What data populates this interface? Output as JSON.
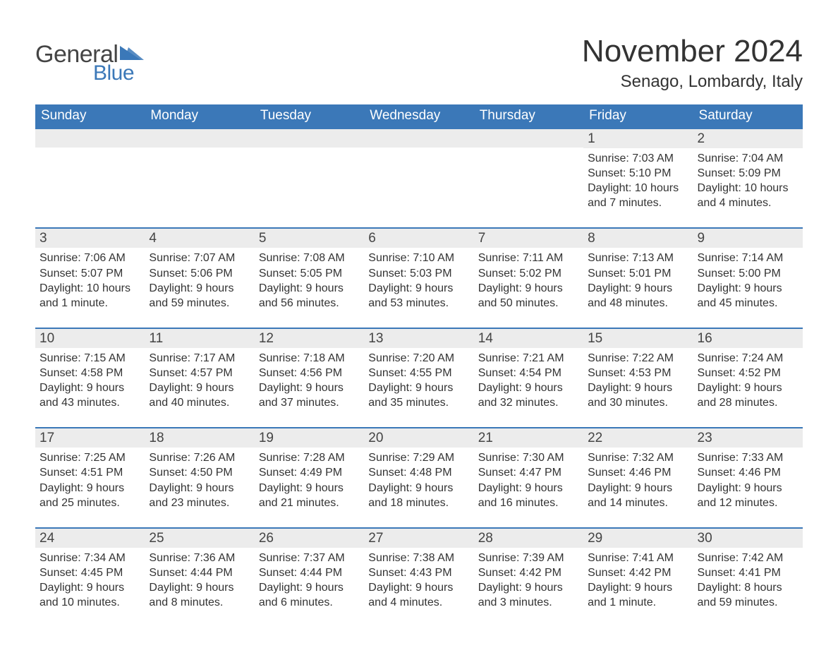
{
  "logo": {
    "text1": "General",
    "text2": "Blue"
  },
  "title": "November 2024",
  "subtitle": "Senago, Lombardy, Italy",
  "colors": {
    "header_bg": "#3b78b8",
    "header_text": "#ffffff",
    "cell_header_bg": "#ececec",
    "week_border": "#3b78b8",
    "text": "#333333",
    "logo_accent": "#3b78b8",
    "page_bg": "#ffffff"
  },
  "daysOfWeek": [
    "Sunday",
    "Monday",
    "Tuesday",
    "Wednesday",
    "Thursday",
    "Friday",
    "Saturday"
  ],
  "weeks": [
    [
      {
        "empty": true
      },
      {
        "empty": true
      },
      {
        "empty": true
      },
      {
        "empty": true
      },
      {
        "empty": true
      },
      {
        "day": "1",
        "sunrise": "Sunrise: 7:03 AM",
        "sunset": "Sunset: 5:10 PM",
        "daylight": "Daylight: 10 hours and 7 minutes."
      },
      {
        "day": "2",
        "sunrise": "Sunrise: 7:04 AM",
        "sunset": "Sunset: 5:09 PM",
        "daylight": "Daylight: 10 hours and 4 minutes."
      }
    ],
    [
      {
        "day": "3",
        "sunrise": "Sunrise: 7:06 AM",
        "sunset": "Sunset: 5:07 PM",
        "daylight": "Daylight: 10 hours and 1 minute."
      },
      {
        "day": "4",
        "sunrise": "Sunrise: 7:07 AM",
        "sunset": "Sunset: 5:06 PM",
        "daylight": "Daylight: 9 hours and 59 minutes."
      },
      {
        "day": "5",
        "sunrise": "Sunrise: 7:08 AM",
        "sunset": "Sunset: 5:05 PM",
        "daylight": "Daylight: 9 hours and 56 minutes."
      },
      {
        "day": "6",
        "sunrise": "Sunrise: 7:10 AM",
        "sunset": "Sunset: 5:03 PM",
        "daylight": "Daylight: 9 hours and 53 minutes."
      },
      {
        "day": "7",
        "sunrise": "Sunrise: 7:11 AM",
        "sunset": "Sunset: 5:02 PM",
        "daylight": "Daylight: 9 hours and 50 minutes."
      },
      {
        "day": "8",
        "sunrise": "Sunrise: 7:13 AM",
        "sunset": "Sunset: 5:01 PM",
        "daylight": "Daylight: 9 hours and 48 minutes."
      },
      {
        "day": "9",
        "sunrise": "Sunrise: 7:14 AM",
        "sunset": "Sunset: 5:00 PM",
        "daylight": "Daylight: 9 hours and 45 minutes."
      }
    ],
    [
      {
        "day": "10",
        "sunrise": "Sunrise: 7:15 AM",
        "sunset": "Sunset: 4:58 PM",
        "daylight": "Daylight: 9 hours and 43 minutes."
      },
      {
        "day": "11",
        "sunrise": "Sunrise: 7:17 AM",
        "sunset": "Sunset: 4:57 PM",
        "daylight": "Daylight: 9 hours and 40 minutes."
      },
      {
        "day": "12",
        "sunrise": "Sunrise: 7:18 AM",
        "sunset": "Sunset: 4:56 PM",
        "daylight": "Daylight: 9 hours and 37 minutes."
      },
      {
        "day": "13",
        "sunrise": "Sunrise: 7:20 AM",
        "sunset": "Sunset: 4:55 PM",
        "daylight": "Daylight: 9 hours and 35 minutes."
      },
      {
        "day": "14",
        "sunrise": "Sunrise: 7:21 AM",
        "sunset": "Sunset: 4:54 PM",
        "daylight": "Daylight: 9 hours and 32 minutes."
      },
      {
        "day": "15",
        "sunrise": "Sunrise: 7:22 AM",
        "sunset": "Sunset: 4:53 PM",
        "daylight": "Daylight: 9 hours and 30 minutes."
      },
      {
        "day": "16",
        "sunrise": "Sunrise: 7:24 AM",
        "sunset": "Sunset: 4:52 PM",
        "daylight": "Daylight: 9 hours and 28 minutes."
      }
    ],
    [
      {
        "day": "17",
        "sunrise": "Sunrise: 7:25 AM",
        "sunset": "Sunset: 4:51 PM",
        "daylight": "Daylight: 9 hours and 25 minutes."
      },
      {
        "day": "18",
        "sunrise": "Sunrise: 7:26 AM",
        "sunset": "Sunset: 4:50 PM",
        "daylight": "Daylight: 9 hours and 23 minutes."
      },
      {
        "day": "19",
        "sunrise": "Sunrise: 7:28 AM",
        "sunset": "Sunset: 4:49 PM",
        "daylight": "Daylight: 9 hours and 21 minutes."
      },
      {
        "day": "20",
        "sunrise": "Sunrise: 7:29 AM",
        "sunset": "Sunset: 4:48 PM",
        "daylight": "Daylight: 9 hours and 18 minutes."
      },
      {
        "day": "21",
        "sunrise": "Sunrise: 7:30 AM",
        "sunset": "Sunset: 4:47 PM",
        "daylight": "Daylight: 9 hours and 16 minutes."
      },
      {
        "day": "22",
        "sunrise": "Sunrise: 7:32 AM",
        "sunset": "Sunset: 4:46 PM",
        "daylight": "Daylight: 9 hours and 14 minutes."
      },
      {
        "day": "23",
        "sunrise": "Sunrise: 7:33 AM",
        "sunset": "Sunset: 4:46 PM",
        "daylight": "Daylight: 9 hours and 12 minutes."
      }
    ],
    [
      {
        "day": "24",
        "sunrise": "Sunrise: 7:34 AM",
        "sunset": "Sunset: 4:45 PM",
        "daylight": "Daylight: 9 hours and 10 minutes."
      },
      {
        "day": "25",
        "sunrise": "Sunrise: 7:36 AM",
        "sunset": "Sunset: 4:44 PM",
        "daylight": "Daylight: 9 hours and 8 minutes."
      },
      {
        "day": "26",
        "sunrise": "Sunrise: 7:37 AM",
        "sunset": "Sunset: 4:44 PM",
        "daylight": "Daylight: 9 hours and 6 minutes."
      },
      {
        "day": "27",
        "sunrise": "Sunrise: 7:38 AM",
        "sunset": "Sunset: 4:43 PM",
        "daylight": "Daylight: 9 hours and 4 minutes."
      },
      {
        "day": "28",
        "sunrise": "Sunrise: 7:39 AM",
        "sunset": "Sunset: 4:42 PM",
        "daylight": "Daylight: 9 hours and 3 minutes."
      },
      {
        "day": "29",
        "sunrise": "Sunrise: 7:41 AM",
        "sunset": "Sunset: 4:42 PM",
        "daylight": "Daylight: 9 hours and 1 minute."
      },
      {
        "day": "30",
        "sunrise": "Sunrise: 7:42 AM",
        "sunset": "Sunset: 4:41 PM",
        "daylight": "Daylight: 8 hours and 59 minutes."
      }
    ]
  ]
}
